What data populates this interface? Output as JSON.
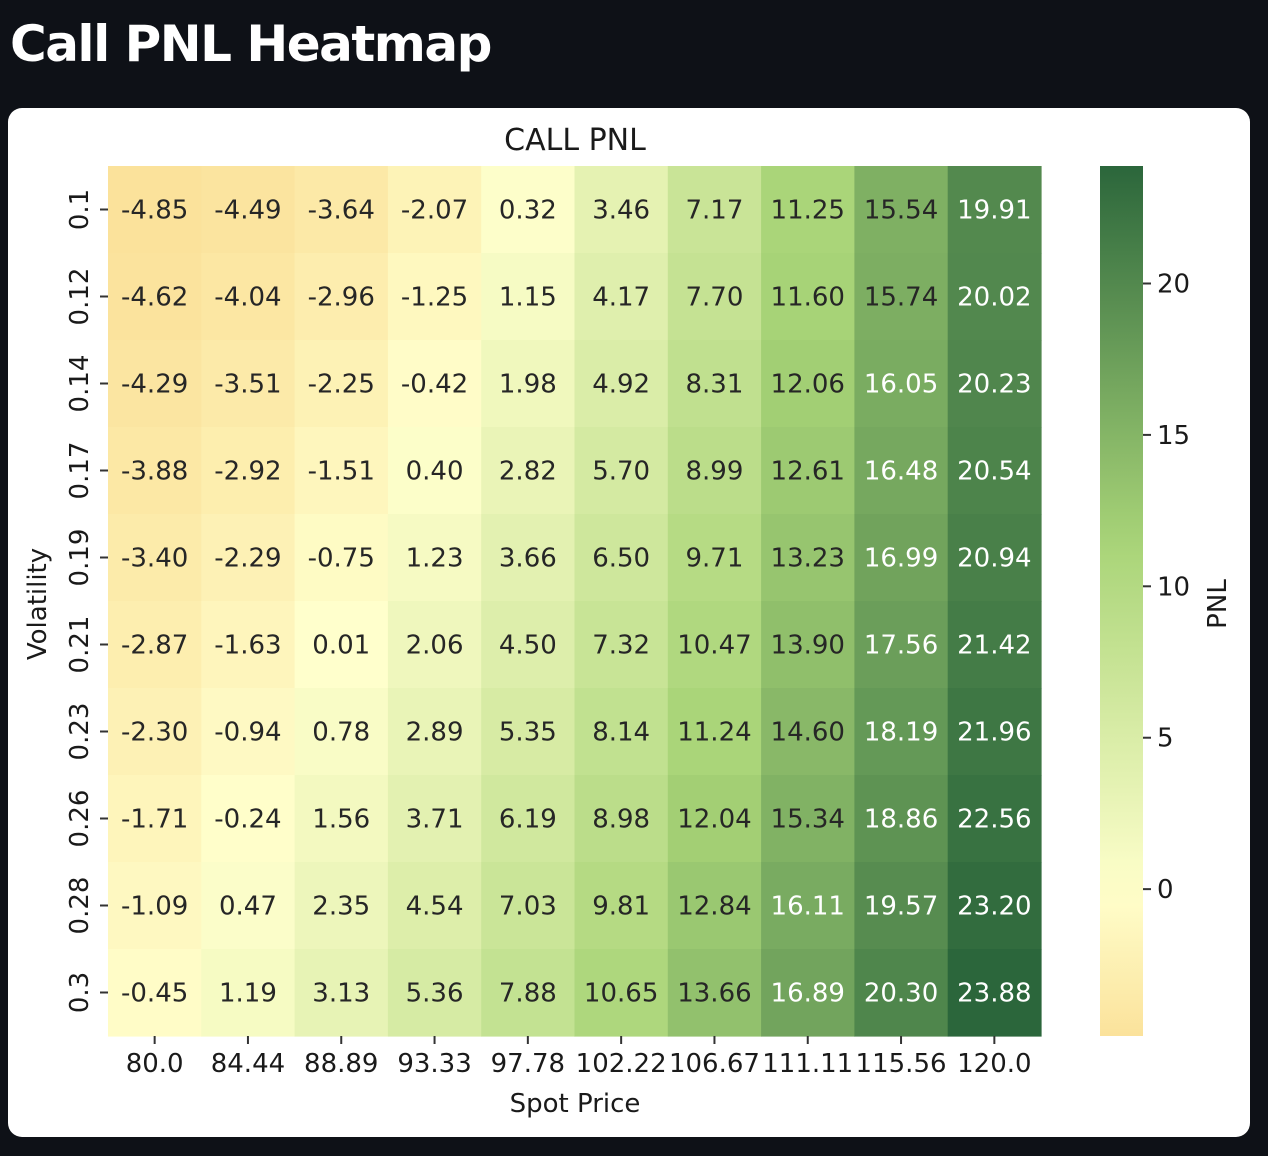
{
  "page": {
    "heading": "Call PNL Heatmap"
  },
  "chart_data": {
    "type": "heatmap",
    "title": "CALL PNL",
    "xlabel": "Spot Price",
    "ylabel": "Volatility",
    "colorbar_label": "PNL",
    "colormap": "RdYlGn-like (yellow to green)",
    "x": [
      "80.0",
      "84.44",
      "88.89",
      "93.33",
      "97.78",
      "102.22",
      "106.67",
      "111.11",
      "115.56",
      "120.0"
    ],
    "y": [
      "0.1",
      "0.12",
      "0.14",
      "0.17",
      "0.19",
      "0.21",
      "0.23",
      "0.26",
      "0.28",
      "0.3"
    ],
    "values": [
      [
        -4.85,
        -4.49,
        -3.64,
        -2.07,
        0.32,
        3.46,
        7.17,
        11.25,
        15.54,
        19.91
      ],
      [
        -4.62,
        -4.04,
        -2.96,
        -1.25,
        1.15,
        4.17,
        7.7,
        11.6,
        15.74,
        20.02
      ],
      [
        -4.29,
        -3.51,
        -2.25,
        -0.42,
        1.98,
        4.92,
        8.31,
        12.06,
        16.05,
        20.23
      ],
      [
        -3.88,
        -2.92,
        -1.51,
        0.4,
        2.82,
        5.7,
        8.99,
        12.61,
        16.48,
        20.54
      ],
      [
        -3.4,
        -2.29,
        -0.75,
        1.23,
        3.66,
        6.5,
        9.71,
        13.23,
        16.99,
        20.94
      ],
      [
        -2.87,
        -1.63,
        0.01,
        2.06,
        4.5,
        7.32,
        10.47,
        13.9,
        17.56,
        21.42
      ],
      [
        -2.3,
        -0.94,
        0.78,
        2.89,
        5.35,
        8.14,
        11.24,
        14.6,
        18.19,
        21.96
      ],
      [
        -1.71,
        -0.24,
        1.56,
        3.71,
        6.19,
        8.98,
        12.04,
        15.34,
        18.86,
        22.56
      ],
      [
        -1.09,
        0.47,
        2.35,
        4.54,
        7.03,
        9.81,
        12.84,
        16.11,
        19.57,
        23.2
      ],
      [
        -0.45,
        1.19,
        3.13,
        5.36,
        7.88,
        10.65,
        13.66,
        16.89,
        20.3,
        23.88
      ]
    ],
    "value_format": "2 decimals",
    "color_range": [
      -4.85,
      23.88
    ],
    "colorbar_ticks": [
      0,
      5,
      10,
      15,
      20
    ],
    "grid": false,
    "colorbar_position": "right",
    "colors": {
      "low": "#fbe29b",
      "zero": "#ffffcc",
      "mid": "#a8d477",
      "high": "#2b663b"
    }
  }
}
